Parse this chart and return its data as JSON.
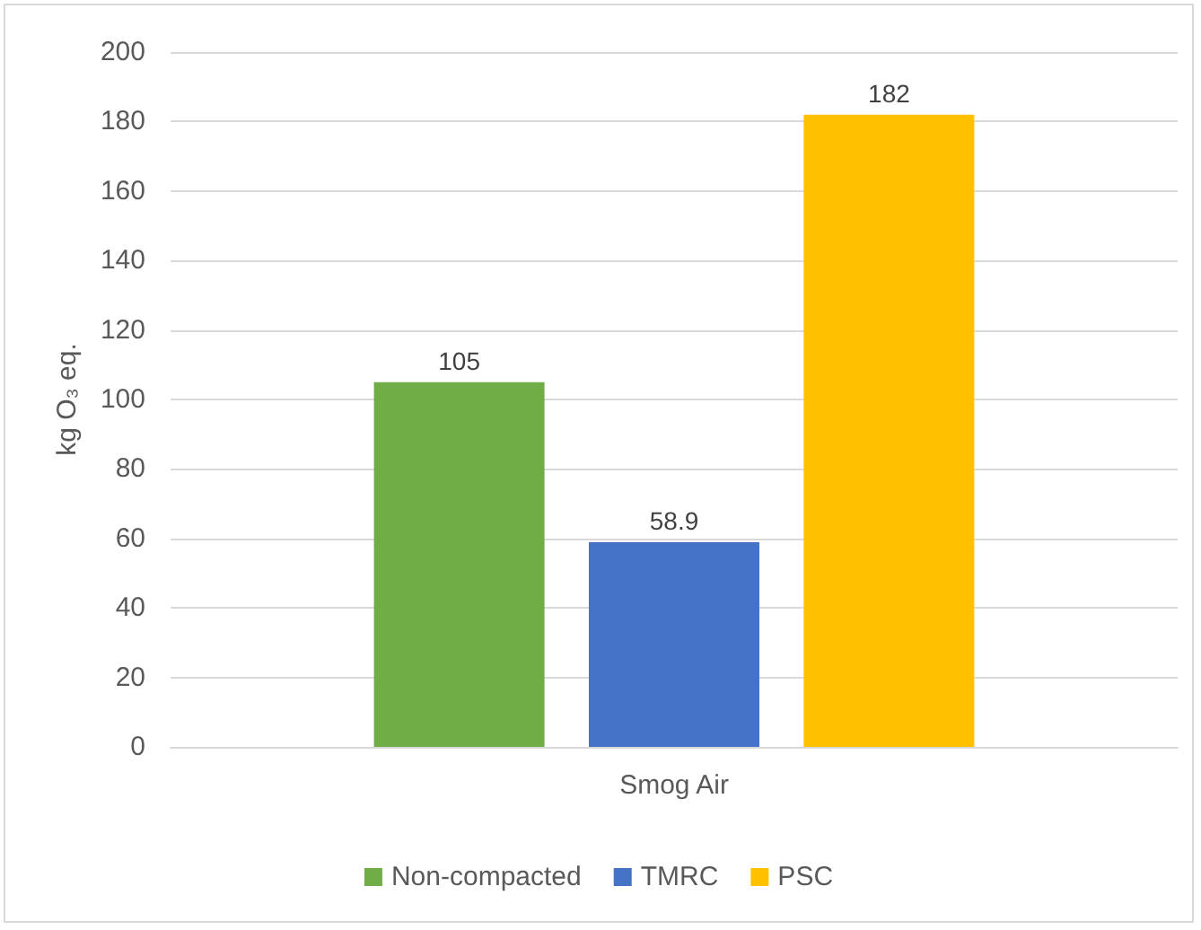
{
  "chart_data": {
    "type": "bar",
    "ylabel": "kg O₃ eq.",
    "categories": [
      "Smog Air"
    ],
    "series": [
      {
        "name": "Non-compacted",
        "color": "#70ad47",
        "values": [
          105
        ]
      },
      {
        "name": "TMRC",
        "color": "#4472c4",
        "values": [
          58.9
        ]
      },
      {
        "name": "PSC",
        "color": "#ffc000",
        "values": [
          182
        ]
      }
    ],
    "ylim": [
      0,
      200
    ],
    "yticks": [
      0,
      20,
      40,
      60,
      80,
      100,
      120,
      140,
      160,
      180,
      200
    ],
    "grid": "y",
    "legend": "bottom",
    "data_labels": true
  }
}
